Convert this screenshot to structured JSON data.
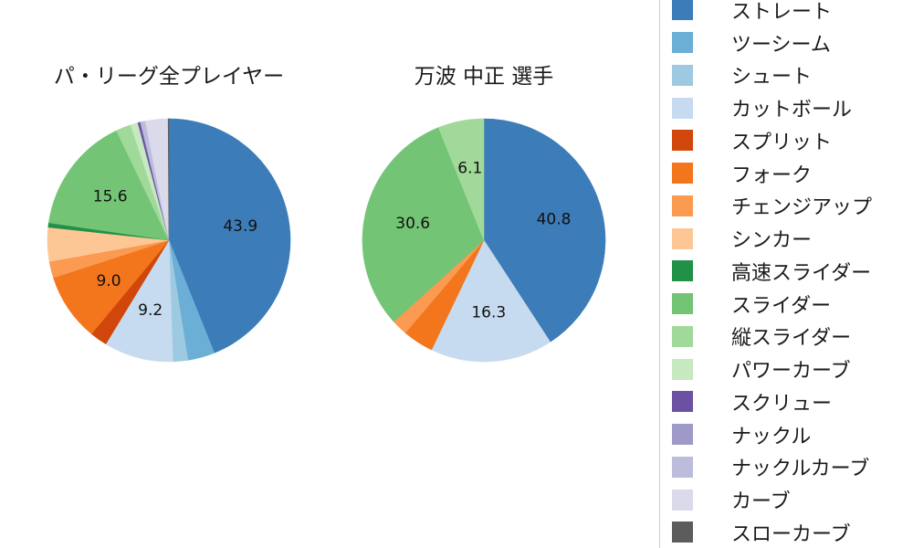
{
  "figure": {
    "background": "#ffffff",
    "legend_border_color": "#cccccc"
  },
  "palette": {
    "ストレート": "#3c7cb8",
    "ツーシーム": "#6baed6",
    "シュート": "#9ecae1",
    "カットボール": "#c6dbef",
    "スプリット": "#d1470b",
    "フォーク": "#f3761d",
    "チェンジアップ": "#fb9a51",
    "シンカー": "#fdc795",
    "高速スライダー": "#229148",
    "スライダー": "#74c476",
    "縦スライダー": "#a1d99b",
    "パワーカーブ": "#c7e9c0",
    "スクリュー": "#6a51a3",
    "ナックル": "#9e9ac8",
    "ナックルカーブ": "#bcbddc",
    "カーブ": "#dadaeb",
    "スローカーブ": "#5c5c5c"
  },
  "legend": {
    "items": [
      "ストレート",
      "ツーシーム",
      "シュート",
      "カットボール",
      "スプリット",
      "フォーク",
      "チェンジアップ",
      "シンカー",
      "高速スライダー",
      "スライダー",
      "縦スライダー",
      "パワーカーブ",
      "スクリュー",
      "ナックル",
      "ナックルカーブ",
      "カーブ",
      "スローカーブ"
    ]
  },
  "chart_data": [
    {
      "type": "pie",
      "title": "パ・リーグ全プレイヤー",
      "start_angle": "top",
      "direction": "clockwise",
      "label_radius_fraction": 0.6,
      "slices": [
        {
          "label": "ストレート",
          "value": 43.9,
          "display": "43.9"
        },
        {
          "label": "ツーシーム",
          "value": 3.6
        },
        {
          "label": "シュート",
          "value": 2.0
        },
        {
          "label": "カットボール",
          "value": 9.2,
          "display": "9.2"
        },
        {
          "label": "スプリット",
          "value": 2.3
        },
        {
          "label": "フォーク",
          "value": 9.0,
          "display": "9.0"
        },
        {
          "label": "チェンジアップ",
          "value": 2.2
        },
        {
          "label": "シンカー",
          "value": 4.5
        },
        {
          "label": "高速スライダー",
          "value": 0.6
        },
        {
          "label": "スライダー",
          "value": 15.6,
          "display": "15.6"
        },
        {
          "label": "縦スライダー",
          "value": 2.0
        },
        {
          "label": "パワーカーブ",
          "value": 1.0
        },
        {
          "label": "スクリュー",
          "value": 0.3
        },
        {
          "label": "ナックル",
          "value": 0.1
        },
        {
          "label": "ナックルカーブ",
          "value": 0.6
        },
        {
          "label": "カーブ",
          "value": 3.0
        },
        {
          "label": "スローカーブ",
          "value": 0.1
        }
      ]
    },
    {
      "type": "pie",
      "title": "万波 中正 選手",
      "start_angle": "top",
      "direction": "clockwise",
      "label_radius_fraction": 0.6,
      "slices": [
        {
          "label": "ストレート",
          "value": 40.8,
          "display": "40.8"
        },
        {
          "label": "カットボール",
          "value": 16.3,
          "display": "16.3"
        },
        {
          "label": "フォーク",
          "value": 4.1
        },
        {
          "label": "チェンジアップ",
          "value": 2.1
        },
        {
          "label": "スライダー",
          "value": 30.6,
          "display": "30.6"
        },
        {
          "label": "縦スライダー",
          "value": 6.1,
          "display": "6.1"
        }
      ]
    }
  ]
}
